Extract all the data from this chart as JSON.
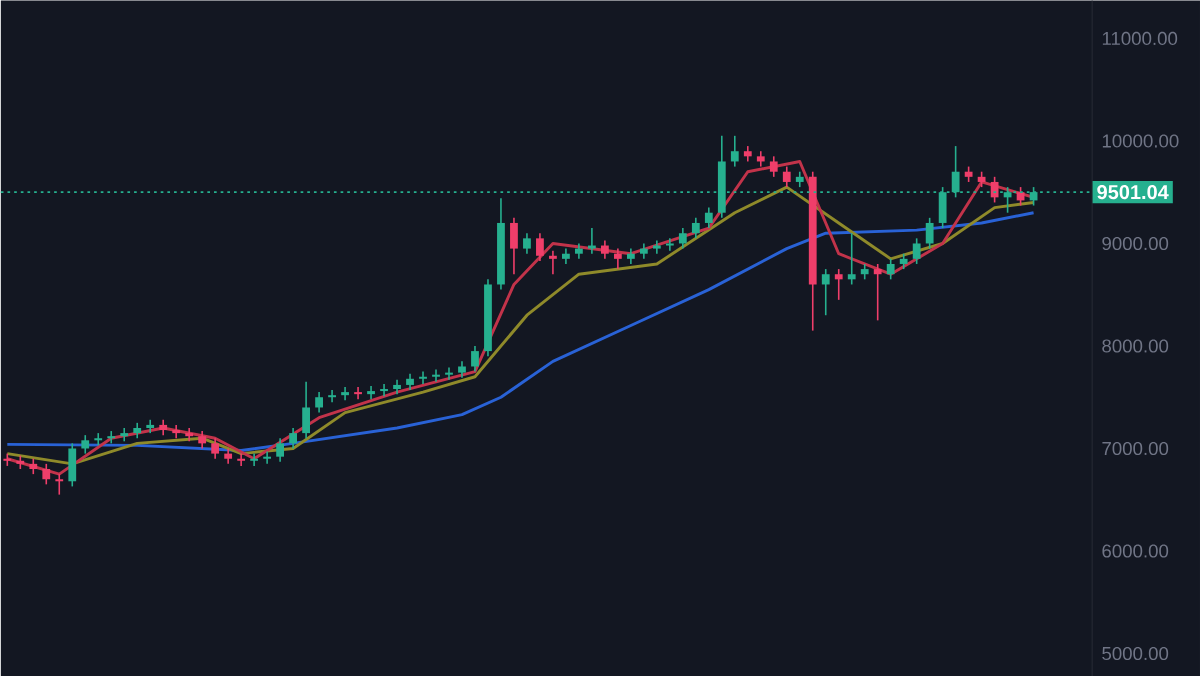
{
  "chart_data": {
    "type": "candlestick",
    "categories": [
      null,
      null,
      null,
      null,
      null,
      null,
      null,
      null,
      null,
      null,
      null,
      null,
      null,
      null,
      null,
      null,
      null,
      null,
      null,
      null,
      null,
      null,
      null,
      null,
      null,
      null,
      null,
      null,
      null,
      null,
      null,
      null,
      null,
      null,
      null,
      null,
      null,
      null,
      null,
      null,
      null,
      null,
      null,
      null,
      null,
      null,
      null,
      null,
      null,
      null,
      null,
      null,
      null,
      null,
      null,
      null,
      null,
      null,
      null,
      null,
      null,
      null,
      null,
      null,
      null,
      null,
      null,
      null,
      null,
      null,
      null,
      null,
      null,
      null,
      null,
      null,
      null,
      null,
      null,
      null
    ],
    "ohlc": [
      [
        6900,
        6950,
        6830,
        6880
      ],
      [
        6880,
        6930,
        6800,
        6850
      ],
      [
        6850,
        6900,
        6750,
        6800
      ],
      [
        6800,
        6850,
        6650,
        6700
      ],
      [
        6700,
        6750,
        6550,
        6680
      ],
      [
        6680,
        7050,
        6630,
        7000
      ],
      [
        7000,
        7130,
        6950,
        7080
      ],
      [
        7080,
        7150,
        7030,
        7100
      ],
      [
        7100,
        7170,
        7050,
        7120
      ],
      [
        7120,
        7200,
        7070,
        7150
      ],
      [
        7150,
        7250,
        7100,
        7200
      ],
      [
        7200,
        7280,
        7150,
        7230
      ],
      [
        7230,
        7280,
        7130,
        7180
      ],
      [
        7180,
        7230,
        7100,
        7150
      ],
      [
        7150,
        7200,
        7070,
        7120
      ],
      [
        7120,
        7170,
        7000,
        7050
      ],
      [
        7050,
        7100,
        6900,
        6950
      ],
      [
        6950,
        7000,
        6850,
        6900
      ],
      [
        6900,
        6950,
        6830,
        6880
      ],
      [
        6880,
        6950,
        6830,
        6900
      ],
      [
        6900,
        6970,
        6850,
        6920
      ],
      [
        6920,
        7100,
        6870,
        7050
      ],
      [
        7050,
        7200,
        7000,
        7150
      ],
      [
        7150,
        7650,
        7100,
        7400
      ],
      [
        7400,
        7550,
        7350,
        7500
      ],
      [
        7500,
        7570,
        7450,
        7520
      ],
      [
        7520,
        7600,
        7470,
        7550
      ],
      [
        7550,
        7600,
        7480,
        7530
      ],
      [
        7530,
        7610,
        7480,
        7560
      ],
      [
        7560,
        7630,
        7510,
        7580
      ],
      [
        7580,
        7670,
        7530,
        7620
      ],
      [
        7620,
        7730,
        7570,
        7680
      ],
      [
        7680,
        7750,
        7630,
        7700
      ],
      [
        7700,
        7770,
        7650,
        7720
      ],
      [
        7720,
        7790,
        7670,
        7740
      ],
      [
        7740,
        7850,
        7690,
        7800
      ],
      [
        7800,
        8000,
        7750,
        7950
      ],
      [
        7950,
        8650,
        7900,
        8600
      ],
      [
        8600,
        9440,
        8550,
        9200
      ],
      [
        9200,
        9250,
        8700,
        8950
      ],
      [
        8950,
        9100,
        8900,
        9050
      ],
      [
        9050,
        9100,
        8830,
        8880
      ],
      [
        8880,
        8930,
        8700,
        8850
      ],
      [
        8850,
        8950,
        8800,
        8900
      ],
      [
        8900,
        9000,
        8850,
        8950
      ],
      [
        8950,
        9150,
        8900,
        8980
      ],
      [
        8980,
        9030,
        8850,
        8900
      ],
      [
        8900,
        8950,
        8750,
        8850
      ],
      [
        8850,
        8950,
        8800,
        8900
      ],
      [
        8900,
        9000,
        8850,
        8950
      ],
      [
        8950,
        9030,
        8900,
        8980
      ],
      [
        8980,
        9050,
        8930,
        9000
      ],
      [
        9000,
        9150,
        8950,
        9100
      ],
      [
        9100,
        9250,
        9050,
        9200
      ],
      [
        9200,
        9350,
        9150,
        9300
      ],
      [
        9300,
        10050,
        9250,
        9800
      ],
      [
        9800,
        10050,
        9750,
        9900
      ],
      [
        9900,
        9950,
        9800,
        9850
      ],
      [
        9850,
        9900,
        9750,
        9800
      ],
      [
        9800,
        9850,
        9650,
        9700
      ],
      [
        9700,
        9750,
        9550,
        9600
      ],
      [
        9600,
        9700,
        9550,
        9650
      ],
      [
        9650,
        9700,
        8150,
        8600
      ],
      [
        8600,
        8750,
        8300,
        8700
      ],
      [
        8700,
        8750,
        8450,
        8650
      ],
      [
        8650,
        9100,
        8600,
        8700
      ],
      [
        8700,
        8800,
        8650,
        8750
      ],
      [
        8750,
        8800,
        8250,
        8700
      ],
      [
        8700,
        8850,
        8650,
        8800
      ],
      [
        8800,
        8900,
        8750,
        8850
      ],
      [
        8850,
        9050,
        8800,
        9000
      ],
      [
        9000,
        9250,
        8950,
        9200
      ],
      [
        9200,
        9550,
        9150,
        9500
      ],
      [
        9500,
        9950,
        9450,
        9700
      ],
      [
        9700,
        9750,
        9600,
        9650
      ],
      [
        9650,
        9700,
        9550,
        9600
      ],
      [
        9600,
        9650,
        9400,
        9450
      ],
      [
        9450,
        9550,
        9300,
        9500
      ],
      [
        9500,
        9550,
        9370,
        9420
      ],
      [
        9420,
        9550,
        9370,
        9501
      ]
    ],
    "colors": [
      "#ef3e6a",
      "#ef3e6a",
      "#ef3e6a",
      "#ef3e6a",
      "#ef3e6a",
      "#26b08f",
      "#26b08f",
      "#26b08f",
      "#26b08f",
      "#26b08f",
      "#26b08f",
      "#26b08f",
      "#ef3e6a",
      "#ef3e6a",
      "#ef3e6a",
      "#ef3e6a",
      "#ef3e6a",
      "#ef3e6a",
      "#ef3e6a",
      "#26b08f",
      "#26b08f",
      "#26b08f",
      "#26b08f",
      "#26b08f",
      "#26b08f",
      "#26b08f",
      "#26b08f",
      "#ef3e6a",
      "#26b08f",
      "#26b08f",
      "#26b08f",
      "#26b08f",
      "#26b08f",
      "#26b08f",
      "#26b08f",
      "#26b08f",
      "#26b08f",
      "#26b08f",
      "#26b08f",
      "#ef3e6a",
      "#26b08f",
      "#ef3e6a",
      "#ef3e6a",
      "#26b08f",
      "#26b08f",
      "#26b08f",
      "#ef3e6a",
      "#ef3e6a",
      "#26b08f",
      "#26b08f",
      "#26b08f",
      "#26b08f",
      "#26b08f",
      "#26b08f",
      "#26b08f",
      "#26b08f",
      "#26b08f",
      "#ef3e6a",
      "#ef3e6a",
      "#ef3e6a",
      "#ef3e6a",
      "#26b08f",
      "#ef3e6a",
      "#26b08f",
      "#ef3e6a",
      "#26b08f",
      "#26b08f",
      "#ef3e6a",
      "#26b08f",
      "#26b08f",
      "#26b08f",
      "#26b08f",
      "#26b08f",
      "#26b08f",
      "#ef3e6a",
      "#ef3e6a",
      "#ef3e6a",
      "#26b08f",
      "#ef3e6a",
      "#26b08f"
    ],
    "series": [
      {
        "type": "line",
        "color": "#2962d6",
        "values": [
          7040,
          null,
          null,
          null,
          null,
          null,
          null,
          null,
          null,
          null,
          7030,
          null,
          null,
          null,
          null,
          null,
          null,
          null,
          6980,
          null,
          null,
          null,
          7050,
          null,
          null,
          null,
          null,
          null,
          null,
          null,
          7200,
          null,
          null,
          null,
          null,
          7330,
          null,
          null,
          7500,
          null,
          null,
          null,
          7850,
          null,
          null,
          null,
          null,
          null,
          8200,
          null,
          null,
          null,
          null,
          null,
          8550,
          null,
          null,
          null,
          null,
          null,
          8950,
          null,
          null,
          9100,
          null,
          null,
          null,
          null,
          null,
          null,
          9130,
          null,
          null,
          null,
          null,
          9200,
          null,
          null,
          null,
          9300
        ]
      },
      {
        "type": "line",
        "color": "#8f8a2a",
        "values": [
          6950,
          null,
          null,
          null,
          null,
          6850,
          null,
          null,
          null,
          null,
          7050,
          null,
          null,
          null,
          null,
          7100,
          null,
          null,
          6950,
          null,
          null,
          null,
          7000,
          null,
          null,
          null,
          7350,
          null,
          null,
          null,
          null,
          null,
          7550,
          null,
          null,
          null,
          7700,
          null,
          null,
          null,
          8300,
          null,
          null,
          null,
          8700,
          null,
          null,
          null,
          null,
          null,
          8800,
          null,
          null,
          null,
          null,
          null,
          9300,
          null,
          null,
          null,
          9550,
          null,
          null,
          null,
          9200,
          null,
          null,
          null,
          8850,
          null,
          null,
          null,
          9000,
          null,
          null,
          null,
          9350,
          null,
          null,
          9400
        ]
      },
      {
        "type": "line",
        "color": "#c2334a",
        "values": [
          6900,
          null,
          null,
          null,
          6750,
          null,
          null,
          null,
          7100,
          null,
          null,
          null,
          7200,
          null,
          null,
          null,
          7100,
          null,
          null,
          6900,
          null,
          null,
          null,
          null,
          7300,
          null,
          null,
          null,
          null,
          null,
          7550,
          null,
          null,
          null,
          null,
          null,
          7750,
          null,
          null,
          8600,
          null,
          null,
          9000,
          null,
          null,
          null,
          null,
          null,
          8900,
          null,
          null,
          null,
          null,
          null,
          9150,
          null,
          null,
          9700,
          null,
          null,
          null,
          9800,
          null,
          null,
          8900,
          null,
          null,
          null,
          8700,
          null,
          null,
          null,
          9000,
          null,
          null,
          9600,
          null,
          null,
          null,
          9450
        ]
      }
    ],
    "ylim": [
      4780,
      11370
    ],
    "yticks": [
      {
        "value": 5000,
        "label": "5000.00"
      },
      {
        "value": 6000,
        "label": "6000.00"
      },
      {
        "value": 7000,
        "label": "7000.00"
      },
      {
        "value": 8000,
        "label": "8000.00"
      },
      {
        "value": 9000,
        "label": "9000.00"
      },
      {
        "value": 10000,
        "label": "10000.00"
      },
      {
        "value": 11000,
        "label": "11000.00"
      }
    ],
    "tick_labels": "y",
    "ref_lines": [
      {
        "axis": "y",
        "value": 9501.04,
        "label": "9501.04",
        "color": "#26b08f",
        "line_style": "dotted"
      }
    ]
  }
}
